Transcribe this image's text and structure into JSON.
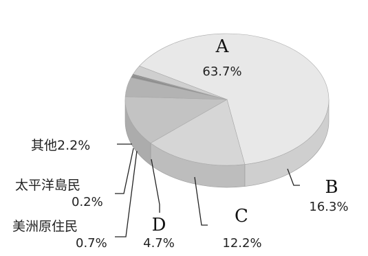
{
  "chart_data": {
    "type": "pie",
    "title": "",
    "slices": [
      {
        "key": "A",
        "label": "A",
        "value": 63.7,
        "value_text": "63.7%",
        "color": "#e8e8e8",
        "side_color": "#cfcfcf"
      },
      {
        "key": "B",
        "label": "B",
        "value": 16.3,
        "value_text": "16.3%",
        "color": "#d6d6d6",
        "side_color": "#bdbdbd"
      },
      {
        "key": "C",
        "label": "C",
        "value": 12.2,
        "value_text": "12.2%",
        "color": "#c3c3c3",
        "side_color": "#acacac"
      },
      {
        "key": "D",
        "label": "D",
        "value": 4.7,
        "value_text": "4.7%",
        "color": "#b3b3b3",
        "side_color": "#9c9c9c"
      },
      {
        "key": "amerindian",
        "label": "美洲原住民",
        "value": 0.7,
        "value_text": "0.7%",
        "color": "#8f8f8f",
        "side_color": "#7a7a7a"
      },
      {
        "key": "pacific",
        "label": "太平洋島民",
        "value": 0.2,
        "value_text": "0.2%",
        "color": "#6e6e6e",
        "side_color": "#5c5c5c"
      },
      {
        "key": "other",
        "label": "其他",
        "value": 2.2,
        "value_text": "2.2%",
        "color": "#cfcfcf",
        "side_color": "#b8b8b8"
      }
    ]
  }
}
